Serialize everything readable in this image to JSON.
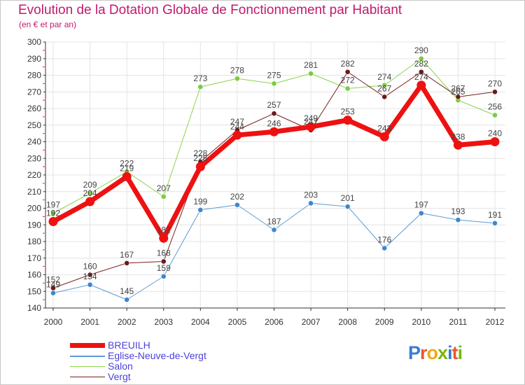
{
  "header": {
    "title": "Evolution de la Dotation Globale de Fonctionnement par Habitant",
    "subtitle": "(en € et par an)"
  },
  "logo": {
    "text": "Proxiti",
    "colors": [
      "#3a7bd5",
      "#e8572e",
      "#f2a71b",
      "#7ab800",
      "#3a7bd5",
      "#e8572e",
      "#7ab800"
    ]
  },
  "chart_data": {
    "type": "line",
    "title": "Evolution de la Dotation Globale de Fonctionnement par Habitant",
    "subtitle": "(en € et par an)",
    "categories": [
      "2000",
      "2001",
      "2002",
      "2003",
      "2004",
      "2005",
      "2006",
      "2007",
      "2008",
      "2009",
      "2010",
      "2011",
      "2012"
    ],
    "ylim": [
      140,
      300
    ],
    "yticks": [
      140,
      150,
      160,
      170,
      180,
      190,
      200,
      210,
      220,
      230,
      240,
      250,
      260,
      270,
      280,
      290,
      300
    ],
    "grid": true,
    "legend_position": "bottom-left",
    "series": [
      {
        "name": "BREUILH",
        "color": "#ee1111",
        "values": [
          192,
          204,
          219,
          182,
          225,
          244,
          246,
          249,
          253,
          243,
          274,
          238,
          240
        ]
      },
      {
        "name": "Eglise-Neuve-de-Vergt",
        "color": "#5b9bd5",
        "values": [
          149,
          154,
          145,
          159,
          199,
          202,
          187,
          203,
          201,
          176,
          197,
          193,
          191
        ]
      },
      {
        "name": "Salon",
        "color": "#8bd34a",
        "values": [
          197,
          209,
          222,
          207,
          273,
          278,
          275,
          281,
          272,
          274,
          290,
          265,
          256
        ]
      },
      {
        "name": "Vergt",
        "color": "#7a1f1f",
        "values": [
          152,
          160,
          167,
          168,
          228,
          247,
          257,
          247,
          282,
          267,
          282,
          267,
          270
        ]
      }
    ]
  }
}
